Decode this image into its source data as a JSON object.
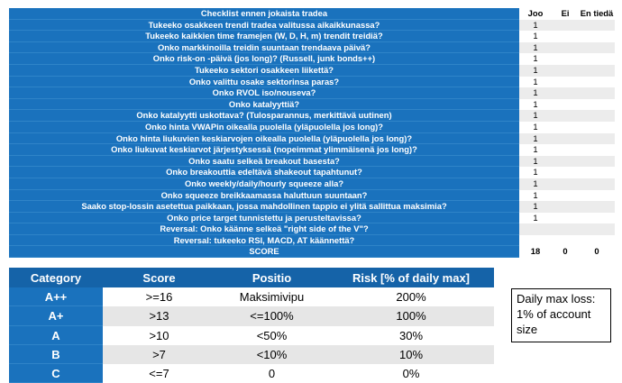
{
  "checklist": {
    "header": {
      "title": "Checklist ennen jokaista tradea",
      "col_joo": "Joo",
      "col_ei": "Ei",
      "col_en": "En tiedä"
    },
    "rows": [
      {
        "q": "Tukeeko osakkeen trendi tradea valitussa aikaikkunassa?",
        "joo": "1"
      },
      {
        "q": "Tukeeko kaikkien time framejen (W, D, H, m) trendit treidiä?",
        "joo": "1"
      },
      {
        "q": "Onko markkinoilla treidin suuntaan trendaava päivä?",
        "joo": "1"
      },
      {
        "q": "Onko risk-on -päivä (jos long)? (Russell, junk bonds++)",
        "joo": "1"
      },
      {
        "q": "Tukeeko sektori osakkeen liikettä?",
        "joo": "1"
      },
      {
        "q": "Onko valittu osake sektorinsa paras?",
        "joo": "1"
      },
      {
        "q": "Onko RVOL iso/nouseva?",
        "joo": "1"
      },
      {
        "q": "Onko katalyyttiä?",
        "joo": "1"
      },
      {
        "q": "Onko katalyytti uskottava? (Tulosparannus, merkittävä uutinen)",
        "joo": "1"
      },
      {
        "q": "Onko hinta VWAPin oikealla puolella (yläpuolella jos long)?",
        "joo": "1"
      },
      {
        "q": "Onko hinta liukuvien keskiarvojen oikealla puolella (yläpuolella jos long)?",
        "joo": "1"
      },
      {
        "q": "Onko liukuvat keskiarvot järjestyksessä (nopeimmat ylimmäisenä jos long)?",
        "joo": "1"
      },
      {
        "q": "Onko saatu selkeä breakout basesta?",
        "joo": "1"
      },
      {
        "q": "Onko breakouttia edeltävä shakeout tapahtunut?",
        "joo": "1"
      },
      {
        "q": "Onko weekly/daily/hourly squeeze alla?",
        "joo": "1"
      },
      {
        "q": "Onko squeeze breikkaamassa haluttuun suuntaan?",
        "joo": "1"
      },
      {
        "q": "Saako stop-lossin asetettua paikkaan, jossa mahdollinen tappio ei ylitä sallittua maksimia?",
        "joo": "1"
      },
      {
        "q": "Onko price target tunnistettu ja perusteltavissa?",
        "joo": "1"
      },
      {
        "q": "Reversal: Onko käänne selkeä \"right side of the V\"?",
        "joo": ""
      },
      {
        "q": "Reversal: tukeeko RSI, MACD, AT käännettä?",
        "joo": ""
      }
    ],
    "score": {
      "label": "SCORE",
      "joo": "18",
      "ei": "0",
      "en": "0"
    }
  },
  "category_table": {
    "headers": [
      "Category",
      "Score",
      "Positio",
      "Risk [% of daily max]"
    ],
    "rows": [
      [
        "A++",
        ">=16",
        "Maksimivipu",
        "200%"
      ],
      [
        "A+",
        ">13",
        "<=100%",
        "100%"
      ],
      [
        "A",
        ">10",
        "<50%",
        "30%"
      ],
      [
        "B",
        ">7",
        "<10%",
        "10%"
      ],
      [
        "C",
        "<=7",
        "0",
        "0%"
      ]
    ]
  },
  "note": {
    "line1": "Daily max loss:",
    "line2": "1% of account",
    "line3": "size"
  }
}
